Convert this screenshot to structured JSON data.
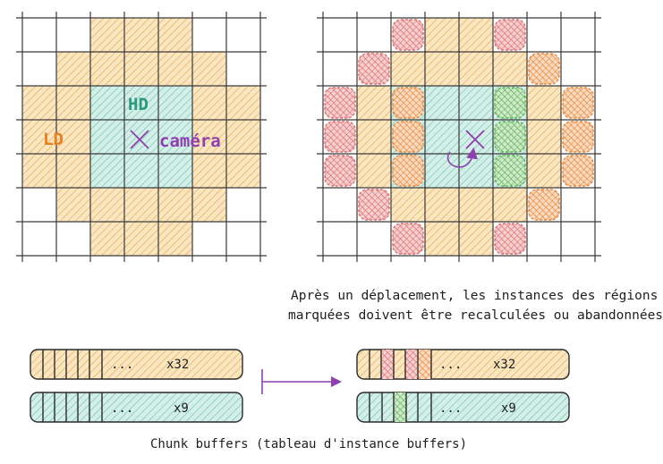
{
  "left_grid": {
    "hd_label": "HD",
    "ld_label": "LD",
    "camera_label": "caméra",
    "cells": [
      [
        null,
        null,
        "ld",
        "ld",
        "ld",
        null,
        null
      ],
      [
        null,
        "ld",
        "ld",
        "ld",
        "ld",
        "ld",
        null
      ],
      [
        "ld",
        "ld",
        "hd",
        "hd",
        "hd",
        "ld",
        "ld"
      ],
      [
        "ld",
        "ld",
        "hd",
        "hd",
        "hd",
        "ld",
        "ld"
      ],
      [
        "ld",
        "ld",
        "hd",
        "hd",
        "hd",
        "ld",
        "ld"
      ],
      [
        null,
        "ld",
        "ld",
        "ld",
        "ld",
        "ld",
        null
      ],
      [
        null,
        null,
        "ld",
        "ld",
        "ld",
        null,
        null
      ]
    ]
  },
  "right_grid": {
    "cells": [
      [
        null,
        null,
        "red",
        "ld",
        "ld",
        "red",
        null,
        null
      ],
      [
        null,
        "red",
        "ld",
        "ld",
        "ld",
        "ld",
        "orange",
        null
      ],
      [
        "red",
        "ld",
        "orange-hd",
        "hd",
        "hd",
        "green-hd",
        "ld",
        "orange"
      ],
      [
        "red",
        "ld",
        "orange-hd",
        "hd",
        "hd",
        "green-hd",
        "ld",
        "orange"
      ],
      [
        "red",
        "ld",
        "orange-hd",
        "hd",
        "hd",
        "green-hd",
        "ld",
        "orange"
      ],
      [
        null,
        "red",
        "ld",
        "ld",
        "ld",
        "ld",
        "orange",
        null
      ],
      [
        null,
        null,
        "red",
        "ld",
        "ld",
        "red",
        null,
        null
      ]
    ]
  },
  "caption_line1": "Après un déplacement, les instances des régions",
  "caption_line2": "marquées doivent être recalculées ou abandonnées",
  "buffers_before": {
    "ld": {
      "dots": "...",
      "count": "x32"
    },
    "hd": {
      "dots": "...",
      "count": "x9"
    }
  },
  "buffers_after": {
    "ld": {
      "dots": "...",
      "count": "x32"
    },
    "hd": {
      "dots": "...",
      "count": "x9"
    }
  },
  "bottom_caption": "Chunk buffers (tableau d'instance buffers)",
  "colors": {
    "ld_stroke": "#e8a64a",
    "ld_fill": "#fbe6c2",
    "hd_stroke": "#6cc4b0",
    "hd_fill": "#d3efe7",
    "red_stroke": "#e07070",
    "red_fill": "#f7d1d1",
    "green_stroke": "#64b45a",
    "green_fill": "#cfeacb",
    "orange_stroke": "#ea8a3a",
    "orange_fill": "#fbdcc3",
    "camera": "#8e3fb0",
    "hd_text": "#2a9a80",
    "ld_text": "#e67f1d",
    "grid": "#3a3a3a"
  }
}
